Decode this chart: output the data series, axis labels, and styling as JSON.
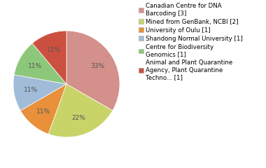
{
  "legend_labels": [
    "Canadian Centre for DNA\nBarcoding [3]",
    "Mined from GenBank, NCBI [2]",
    "University of Oulu [1]",
    "Shandong Normal University [1]",
    "Centre for Biodiversity\nGenomics [1]",
    "Animal and Plant Quarantine\nAgency, Plant Quarantine\nTechno... [1]"
  ],
  "values": [
    3,
    2,
    1,
    1,
    1,
    1
  ],
  "colors": [
    "#d4908a",
    "#c8d468",
    "#e8903a",
    "#a0bcd8",
    "#8dc87a",
    "#cc5040"
  ],
  "pct_color": "#555555",
  "autopct_fontsize": 6.5,
  "legend_fontsize": 6.2,
  "background_color": "#ffffff",
  "startangle": 90
}
